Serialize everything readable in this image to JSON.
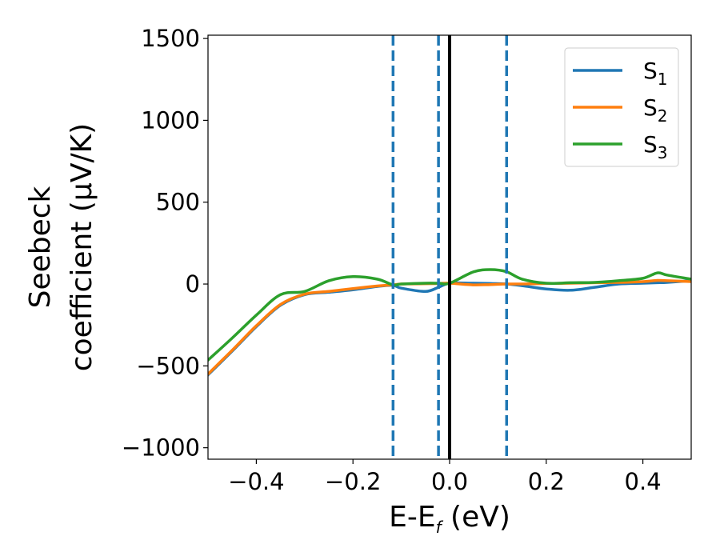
{
  "chart_data": {
    "type": "line",
    "xlabel": {
      "main": "E-E",
      "sub": "f",
      "suffix": " (eV)"
    },
    "ylabel": {
      "line1": "Seebeck",
      "line2": "coefficient  (μV/K)"
    },
    "xlim": [
      -0.5,
      0.5
    ],
    "ylim": [
      -1070,
      1520
    ],
    "xticks": [
      -0.4,
      -0.2,
      0.0,
      0.2,
      0.4
    ],
    "xtick_labels": [
      "−0.4",
      "−0.2",
      "0.0",
      "0.2",
      "0.4"
    ],
    "yticks": [
      -1000,
      -500,
      0,
      500,
      1000,
      1500
    ],
    "ytick_labels": [
      "−1000",
      "−500",
      "0",
      "500",
      "1000",
      "1500"
    ],
    "grid": false,
    "legend_position": "top-right",
    "vlines": [
      {
        "x": -0.117,
        "style": "dashed",
        "color": "#1f77b4"
      },
      {
        "x": -0.023,
        "style": "dashed",
        "color": "#1f77b4"
      },
      {
        "x": 0.0,
        "style": "solid",
        "color": "#000000"
      },
      {
        "x": 0.118,
        "style": "dashed",
        "color": "#1f77b4"
      }
    ],
    "x": [
      -0.5,
      -0.45,
      -0.4,
      -0.35,
      -0.3,
      -0.25,
      -0.2,
      -0.15,
      -0.117,
      -0.1,
      -0.05,
      -0.023,
      0.0,
      0.05,
      0.085,
      0.118,
      0.15,
      0.2,
      0.25,
      0.3,
      0.35,
      0.4,
      0.43,
      0.45,
      0.5
    ],
    "series": [
      {
        "name": "S",
        "sub": "1",
        "color": "#1f77b4",
        "values": [
          -555,
          -410,
          -260,
          -130,
          -65,
          -50,
          -35,
          -15,
          -8,
          -25,
          -45,
          -20,
          5,
          5,
          3,
          0,
          -10,
          -30,
          -38,
          -20,
          0,
          5,
          8,
          10,
          20
        ]
      },
      {
        "name": "S",
        "sub": "2",
        "color": "#ff7f0e",
        "values": [
          -550,
          -405,
          -255,
          -125,
          -62,
          -45,
          -28,
          -12,
          -5,
          0,
          2,
          3,
          5,
          -5,
          -3,
          0,
          0,
          3,
          5,
          8,
          10,
          15,
          22,
          20,
          15
        ]
      },
      {
        "name": "S",
        "sub": "3",
        "color": "#2ca02c",
        "values": [
          -465,
          -330,
          -190,
          -65,
          -45,
          20,
          45,
          30,
          -5,
          0,
          5,
          5,
          5,
          75,
          88,
          75,
          30,
          5,
          8,
          10,
          20,
          35,
          68,
          55,
          30
        ]
      }
    ]
  }
}
